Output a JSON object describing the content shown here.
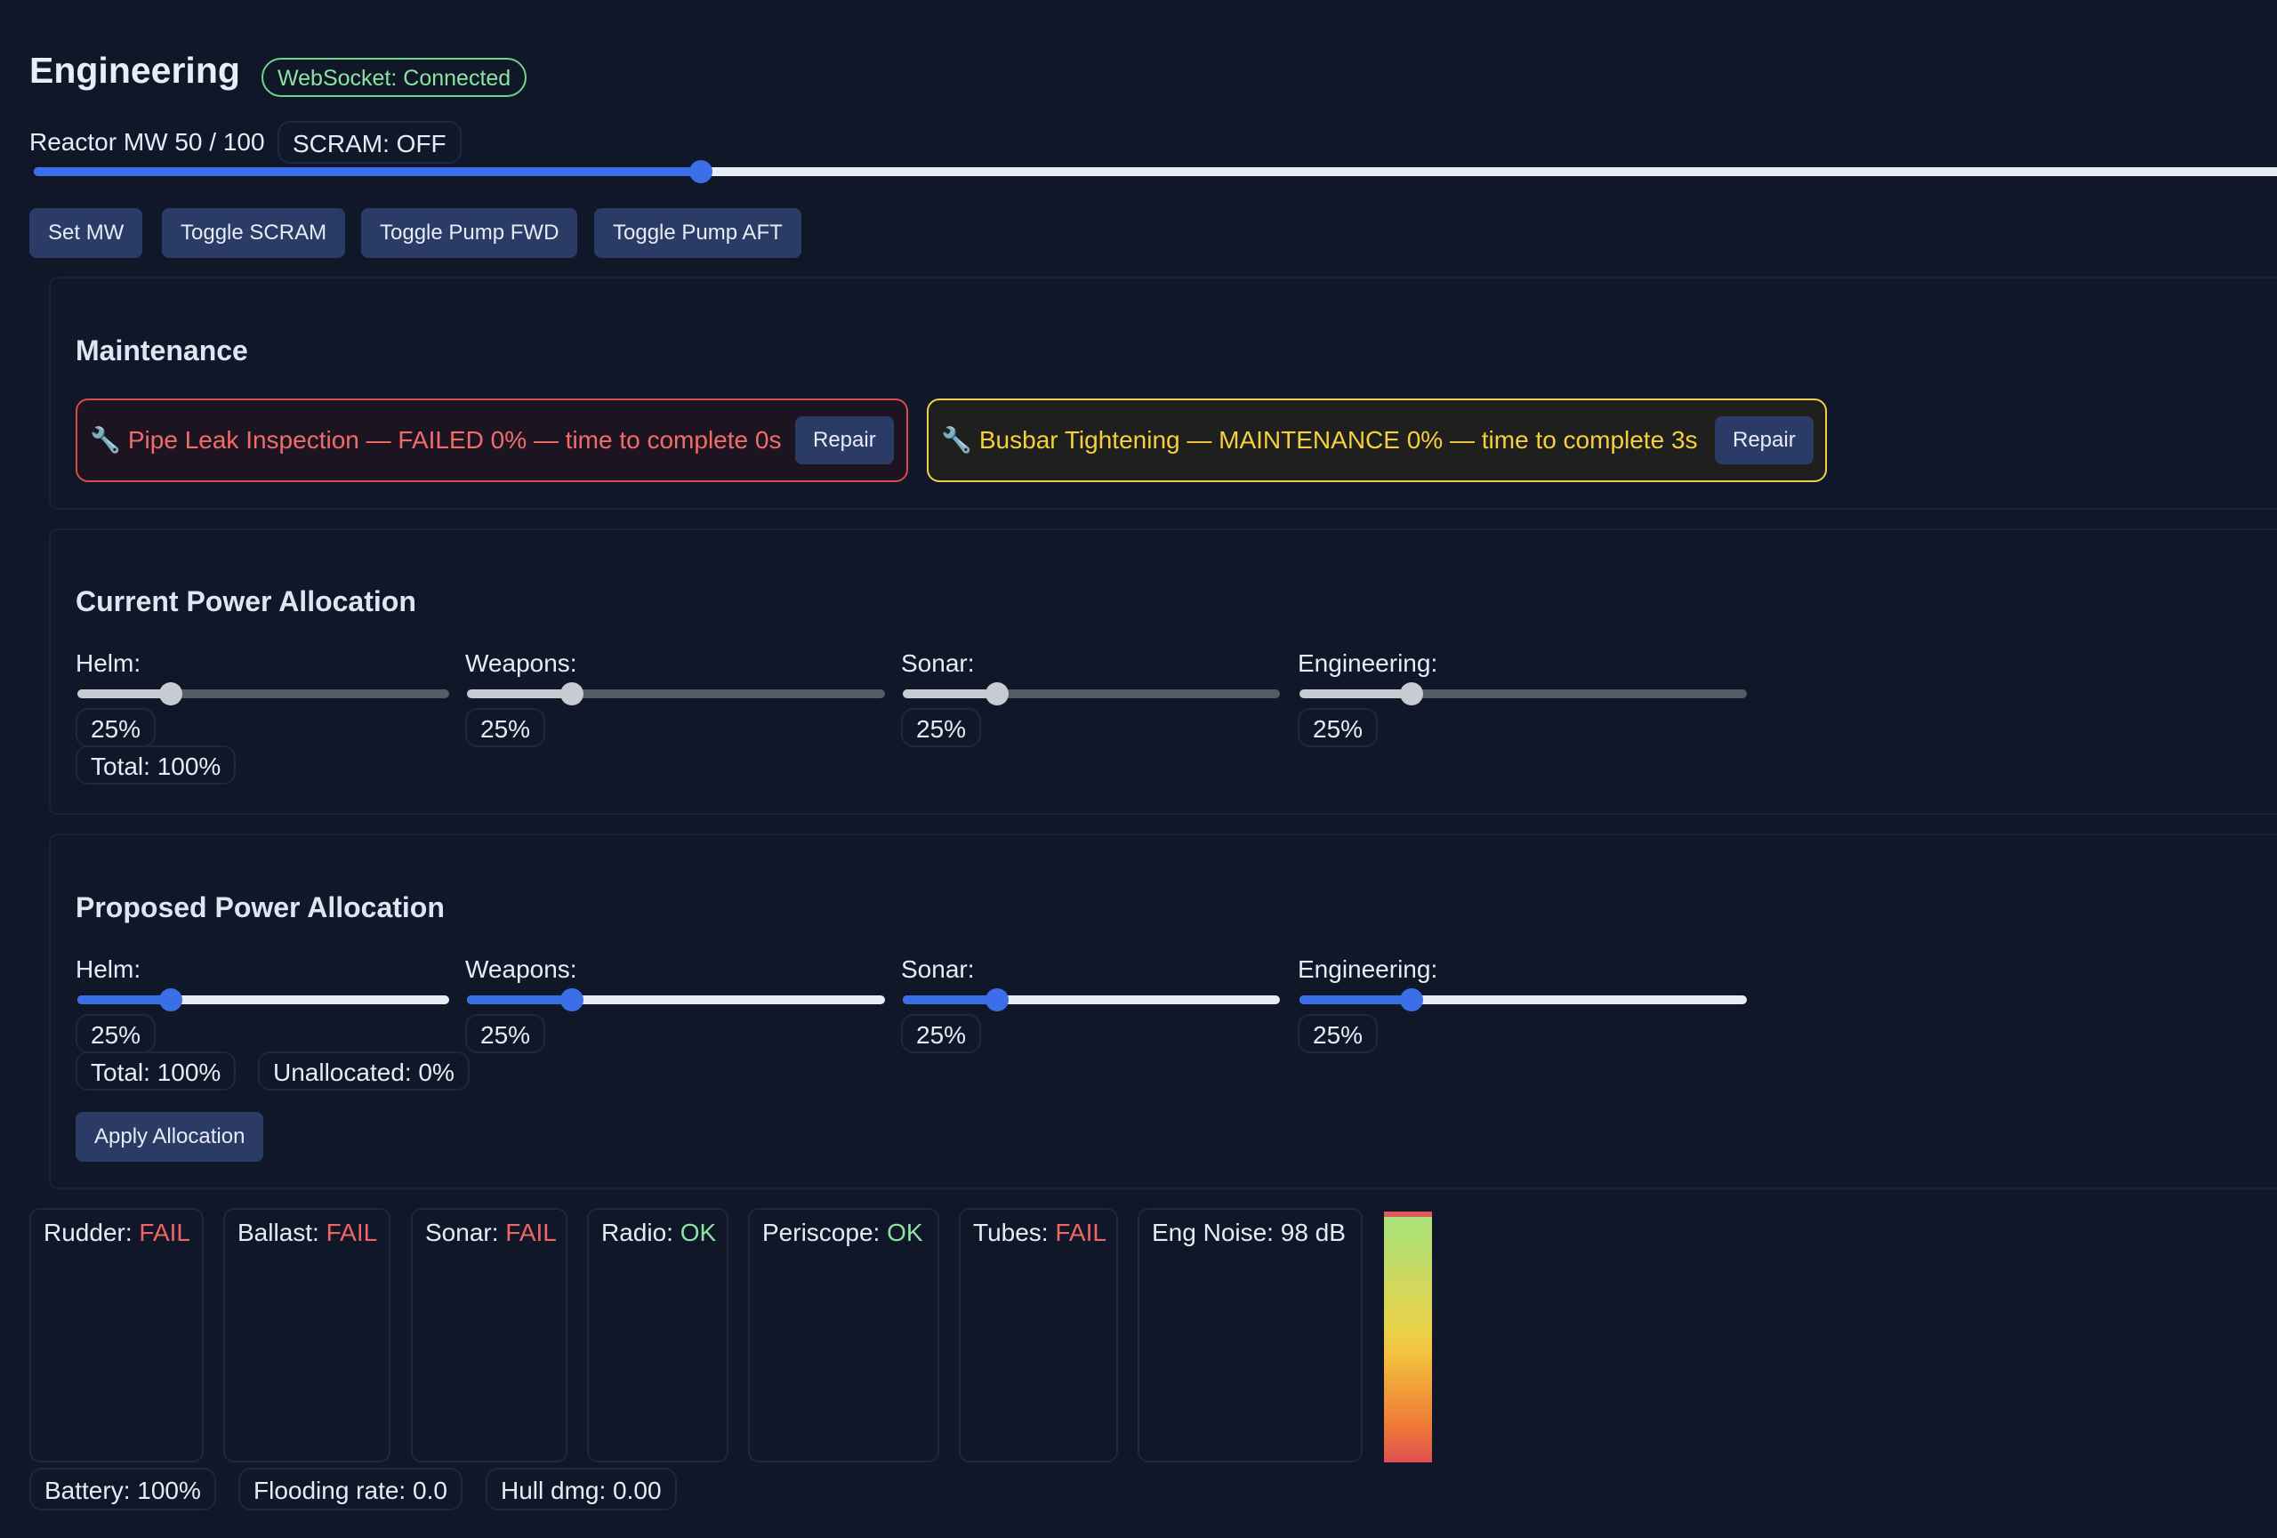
{
  "header": {
    "title": "Engineering",
    "ws_status": "WebSocket: Connected"
  },
  "reactor": {
    "label": "Reactor MW 50 / 100",
    "mw": 50,
    "max_mw": 100,
    "scram": "SCRAM: OFF"
  },
  "controls": {
    "set_mw": "Set MW",
    "toggle_scram": "Toggle SCRAM",
    "toggle_pump_fwd": "Toggle Pump FWD",
    "toggle_pump_aft": "Toggle Pump AFT"
  },
  "maintenance": {
    "title": "Maintenance",
    "tasks": [
      {
        "icon": "wrench-icon",
        "glyph": "🔧",
        "text": "Pipe Leak Inspection — FAILED 0% — time to complete 0s",
        "repair": "Repair",
        "status": "failed"
      },
      {
        "icon": "wrench-icon",
        "glyph": "🔧",
        "text": "Busbar Tightening — MAINTENANCE 0% — time to complete 3s",
        "repair": "Repair",
        "status": "maintenance"
      }
    ]
  },
  "current_power": {
    "title": "Current Power Allocation",
    "helm": {
      "label": "Helm:",
      "value": "25%",
      "level": 0.25
    },
    "weapons": {
      "label": "Weapons:",
      "value": "25%",
      "level": 0.25
    },
    "sonar": {
      "label": "Sonar:",
      "value": "25%",
      "level": 0.25
    },
    "engineering": {
      "label": "Engineering:",
      "value": "25%",
      "level": 0.25
    },
    "total": "Total: 100%"
  },
  "proposed_power": {
    "title": "Proposed Power Allocation",
    "helm": {
      "label": "Helm:",
      "value": "25%",
      "level": 0.25
    },
    "weapons": {
      "label": "Weapons:",
      "value": "25%",
      "level": 0.25
    },
    "sonar": {
      "label": "Sonar:",
      "value": "25%",
      "level": 0.25
    },
    "engineering": {
      "label": "Engineering:",
      "value": "25%",
      "level": 0.25
    },
    "total": "Total: 100%",
    "unallocated": "Unallocated: 0%",
    "apply": "Apply Allocation"
  },
  "systems": {
    "rudder": {
      "label": "Rudder: ",
      "status": "FAIL"
    },
    "ballast": {
      "label": "Ballast: ",
      "status": "FAIL"
    },
    "sonar": {
      "label": "Sonar: ",
      "status": "FAIL"
    },
    "radio": {
      "label": "Radio: ",
      "status": "OK"
    },
    "periscope": {
      "label": "Periscope: ",
      "status": "OK"
    },
    "tubes": {
      "label": "Tubes: ",
      "status": "FAIL"
    },
    "eng_noise": "Eng Noise: 98 dB",
    "eng_noise_db": 98
  },
  "footer": {
    "battery": "Battery: 100%",
    "flooding": "Flooding rate: 0.0",
    "hull": "Hull dmg: 0.00"
  },
  "colors": {
    "background": "#0f1729",
    "accent": "#3b6fe8",
    "fail": "#f06464",
    "ok": "#8de2a2",
    "warning": "#f5cf3c"
  }
}
